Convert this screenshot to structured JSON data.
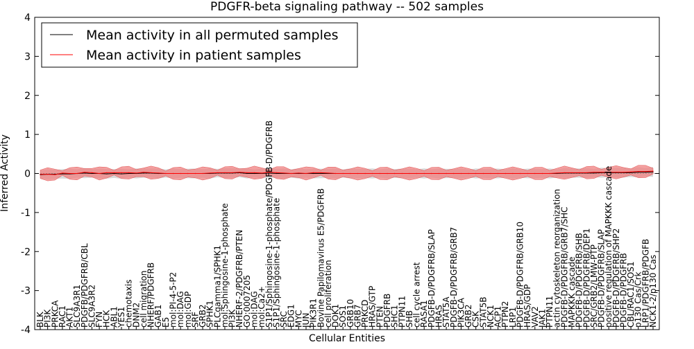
{
  "chart_data": {
    "type": "line",
    "title": "PDGFR-beta signaling pathway -- 502 samples",
    "xlabel": "Cellular Entities",
    "ylabel": "Inferred Activity",
    "ylim": [
      -4,
      4
    ],
    "yticks": [
      -4,
      -3,
      -2,
      -1,
      0,
      1,
      2,
      3,
      4
    ],
    "grid": false,
    "legend_position": "upper-left",
    "colors": {
      "permuted": "#000000",
      "patient": "#ff0000",
      "patient_band": "#f08080",
      "permuted_band": "#c0c0c0"
    },
    "categories": [
      "BLK",
      "PI3K",
      "PRKCA",
      "RAC1",
      "AKT1",
      "SLC9A3R1",
      "PDGFB/PDGFRB/CBL",
      "SLC9A3R2",
      "FYN",
      "HCK",
      "ABL1",
      "YES1",
      "chemotaxis",
      "DNM2",
      "cell migration",
      "NHERF/PDGFRB",
      "GAB1",
      "E5",
      "mol:PI-4-5-P2",
      "mol:DAG",
      "mol:GDP",
      "SRF",
      "GRB2",
      "SPHK1",
      "PLCgamma1/SPHK1",
      "mol:Sphingosine-1-phosphate",
      "PI3K",
      "NHERF-2/PDGFRB/PTEN",
      "GO:0007205",
      "mol:DAG",
      "mol:Ca2+",
      "S1P1/Sphingosine-1-phosphate/PDGFB-D/PDGFRB",
      "S1P1/Sphingosine-1-phosphate",
      "SRC",
      "EDG1",
      "MYC",
      "JUN",
      "PIK3R1",
      "Bovine Papilomavirus E5/PDGFRB",
      "cell proliferation",
      "DOK1",
      "SOS1",
      "GRB10",
      "GRB7",
      "PRKCD",
      "HRAS/GTP",
      "PTEN",
      "PDGFRB",
      "SHC1",
      "PTPN11",
      "SHB",
      "cell cycle arrest",
      "RASA1",
      "PDGFB-D/PDGFRB/SLAP",
      "HRAS",
      "STAT5A",
      "PDGFB-D/PDGFRB/GRB7",
      "PIK3CA",
      "GRB2",
      "CSK",
      "STAT5B",
      "NCK1",
      "ACP1",
      "PTPN2",
      "LRP1",
      "PDGFB-D/PDGFRB/GRB10",
      "HRAS/GDP",
      "VAV2",
      "JAK1",
      "PTPN11",
      "actin cytoskeleton reorganization",
      "PDGFB-D/PDGFRB/GRB7/SHC",
      "MAPKKK cascade",
      "PDGFB-D/PDGFRB/SHB",
      "PDGFB-D/PDGFRB/DEP1",
      "SRC/GRB2/LMW-PTP",
      "PDGFB-D/PDGFRB/SLAP",
      "positive regulation of MAPKKK cascade",
      "PDGFB-D/PDGFRB/SHP2",
      "PDGFB-D/PDGFRB",
      "CBL/RAC1/SOS1",
      "p130 Cas/Crk",
      "LRP1/PDGFRB/PDGFB",
      "NCK1-2/p130 Cas"
    ],
    "series": [
      {
        "name": "Mean activity in all permuted samples",
        "values": [
          -0.03,
          -0.02,
          -0.02,
          -0.01,
          -0.01,
          0.0,
          0.01,
          0.0,
          0.0,
          -0.01,
          0.0,
          -0.01,
          0.0,
          0.0,
          0.01,
          0.01,
          0.0,
          0.0,
          0.0,
          0.0,
          0.0,
          0.0,
          0.0,
          0.0,
          0.01,
          0.01,
          0.01,
          0.02,
          0.0,
          0.0,
          0.0,
          0.01,
          0.0,
          0.0,
          0.0,
          0.0,
          0.0,
          0.0,
          0.0,
          0.0,
          0.0,
          0.0,
          0.0,
          0.0,
          0.0,
          0.0,
          0.0,
          0.0,
          0.0,
          0.0,
          0.0,
          0.0,
          0.0,
          0.0,
          0.0,
          0.0,
          0.0,
          0.0,
          0.0,
          0.0,
          0.0,
          0.0,
          0.0,
          0.0,
          0.0,
          0.0,
          0.0,
          0.0,
          0.0,
          0.0,
          0.0,
          0.01,
          0.01,
          0.01,
          0.01,
          0.01,
          0.02,
          0.02,
          0.02,
          0.02,
          0.02,
          0.03,
          0.03,
          0.04
        ]
      },
      {
        "name": "Mean activity in patient samples",
        "values": [
          -0.02,
          -0.02,
          -0.03,
          0.01,
          0.0,
          0.0,
          0.03,
          0.02,
          0.0,
          0.02,
          0.02,
          0.02,
          0.02,
          0.01,
          0.03,
          0.02,
          0.01,
          0.0,
          0.0,
          0.0,
          0.0,
          0.0,
          0.0,
          0.01,
          0.02,
          0.02,
          0.02,
          0.03,
          0.02,
          0.02,
          0.01,
          0.03,
          0.02,
          0.01,
          0.0,
          0.01,
          0.0,
          0.02,
          0.02,
          0.01,
          0.0,
          0.0,
          0.0,
          0.0,
          0.0,
          0.0,
          0.0,
          0.0,
          0.0,
          0.0,
          0.0,
          0.0,
          0.0,
          0.0,
          0.0,
          0.0,
          0.0,
          0.0,
          0.0,
          0.0,
          0.0,
          0.0,
          0.0,
          0.0,
          0.0,
          0.0,
          0.0,
          0.0,
          0.0,
          0.0,
          0.01,
          0.02,
          0.02,
          0.02,
          0.02,
          0.03,
          0.03,
          0.03,
          0.03,
          0.03,
          0.04,
          0.05,
          0.05,
          0.06
        ]
      }
    ]
  }
}
